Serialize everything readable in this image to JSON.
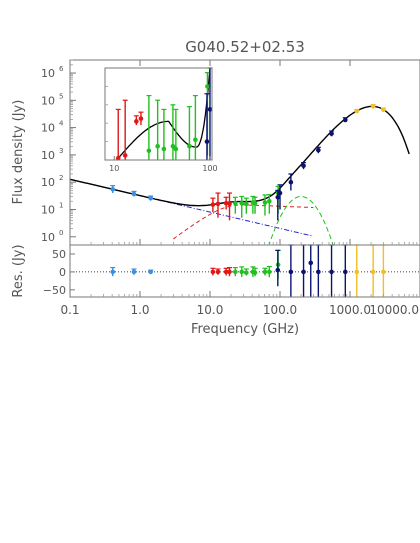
{
  "chart_data": {
    "type": "scatter",
    "title": "G040.52+02.53",
    "colors": {
      "blue": "#3a8fe0",
      "red": "#e01818",
      "green": "#20c020",
      "navy": "#0a1470",
      "gold": "#f0c020",
      "model": "#000000",
      "dust": "#20c020",
      "ff": "#e02020",
      "sync": "#2020d0"
    },
    "main": {
      "ylabel": "Flux density (Jy)",
      "xscale": "log",
      "yscale": "log",
      "xlim": [
        0.1,
        10000
      ],
      "ylim": [
        0.5,
        3000000
      ],
      "yticks": [
        {
          "v": 1,
          "t": "10",
          "e": "0"
        },
        {
          "v": 10,
          "t": "10",
          "e": "1"
        },
        {
          "v": 100,
          "t": "10",
          "e": "2"
        },
        {
          "v": 1000,
          "t": "10",
          "e": "3"
        },
        {
          "v": 10000,
          "t": "10",
          "e": "4"
        },
        {
          "v": 100000,
          "t": "10",
          "e": "5"
        },
        {
          "v": 1000000,
          "t": "10",
          "e": "6"
        }
      ],
      "series": [
        {
          "color": "blue",
          "points": [
            [
              0.408,
              55,
              40,
              75
            ],
            [
              0.82,
              37,
              30,
              46
            ],
            [
              1.42,
              26,
              21,
              31
            ]
          ]
        },
        {
          "color": "red",
          "points": [
            [
              11,
              15,
              8,
              26
            ],
            [
              13,
              16,
              5,
              40
            ],
            [
              17,
              17,
              10,
              28
            ],
            [
              19,
              16,
              4,
              40
            ]
          ]
        },
        {
          "color": "green",
          "points": [
            [
              23,
              17,
              7,
              28
            ],
            [
              28.4,
              17,
              5,
              30
            ],
            [
              33,
              16,
              7,
              26
            ],
            [
              41,
              18,
              7,
              30
            ],
            [
              44,
              17,
              7,
              28
            ],
            [
              61,
              18,
              6,
              34
            ],
            [
              70.4,
              20,
              7,
              35
            ],
            [
              94,
              40,
              7,
              70
            ]
          ]
        },
        {
          "color": "navy",
          "points": [
            [
              93,
              28,
              4,
              50
            ],
            [
              100,
              40,
              10,
              80
            ],
            [
              143,
              100,
              50,
              200
            ],
            [
              217,
              400,
              300,
              520
            ],
            [
              353,
              1500,
              1150,
              1900
            ],
            [
              545,
              6000,
              4800,
              7500
            ],
            [
              857,
              19000,
              16000,
              23000
            ]
          ]
        },
        {
          "color": "gold",
          "points": [
            [
              1250,
              40000,
              35000,
              46000
            ],
            [
              2140,
              60000,
              50000,
              70000
            ],
            [
              3000,
              45000,
              38000,
              52000
            ]
          ]
        }
      ]
    },
    "inset": {
      "xscale": "log",
      "yscale": "linear",
      "xlim": [
        8,
        105
      ],
      "ylim": [
        0,
        100
      ],
      "xticks": [
        {
          "v": 10,
          "t": "10"
        },
        {
          "v": 100,
          "t": "100"
        }
      ],
      "series": [
        {
          "color": "red",
          "points": [
            [
              11,
              2,
              0,
              55
            ],
            [
              13,
              5,
              0,
              65
            ],
            [
              17,
              42,
              38,
              48
            ],
            [
              19,
              45,
              38,
              52
            ]
          ]
        },
        {
          "color": "green",
          "points": [
            [
              23,
              10,
              0,
              70
            ],
            [
              28.4,
              15,
              0,
              65
            ],
            [
              33,
              12,
              0,
              55
            ],
            [
              41,
              15,
              0,
              60
            ],
            [
              44,
              12,
              0,
              55
            ],
            [
              61,
              15,
              0,
              58
            ],
            [
              70.4,
              22,
              0,
              70
            ],
            [
              94,
              80,
              5,
              95
            ]
          ]
        },
        {
          "color": "navy",
          "points": [
            [
              93,
              20,
              0,
              72
            ],
            [
              100,
              55,
              0,
              100
            ]
          ]
        }
      ]
    },
    "residual": {
      "ylabel": "Res. (Jy)",
      "xlabel": "Frequency (GHz)",
      "xscale": "log",
      "xlim": [
        0.1,
        10000
      ],
      "ylim": [
        -70,
        75
      ],
      "yticks": [
        {
          "v": 50,
          "t": "50"
        },
        {
          "v": 0,
          "t": "0"
        },
        {
          "v": -50,
          "t": "−50"
        }
      ],
      "xticks": [
        {
          "v": 0.1,
          "t": "0.1"
        },
        {
          "v": 1,
          "t": "1.0"
        },
        {
          "v": 10,
          "t": "10.0"
        },
        {
          "v": 100,
          "t": "100.0"
        },
        {
          "v": 1000,
          "t": "1000.0"
        },
        {
          "v": 10000,
          "t": "10000.0"
        }
      ],
      "series": [
        {
          "color": "blue",
          "points": [
            [
              0.408,
              0,
              -12,
              12
            ],
            [
              0.82,
              0,
              -8,
              8
            ],
            [
              1.42,
              0,
              -5,
              5
            ]
          ]
        },
        {
          "color": "red",
          "points": [
            [
              11,
              0,
              -10,
              10
            ],
            [
              13,
              0,
              -8,
              8
            ],
            [
              17,
              0,
              -10,
              10
            ],
            [
              19,
              0,
              -12,
              12
            ]
          ]
        },
        {
          "color": "green",
          "points": [
            [
              23,
              0,
              -12,
              12
            ],
            [
              28.4,
              0,
              -14,
              14
            ],
            [
              33,
              -2,
              -10,
              8
            ],
            [
              41,
              0,
              -14,
              14
            ],
            [
              44,
              -2,
              -12,
              10
            ],
            [
              61,
              0,
              -10,
              10
            ],
            [
              70.4,
              0,
              -15,
              15
            ],
            [
              94,
              20,
              -20,
              60
            ]
          ]
        },
        {
          "color": "navy",
          "points": [
            [
              93,
              5,
              -40,
              60
            ],
            [
              143,
              0,
              -70,
              75
            ],
            [
              217,
              0,
              -70,
              75
            ],
            [
              275,
              25,
              -70,
              75
            ],
            [
              353,
              0,
              -70,
              75
            ],
            [
              545,
              0,
              -70,
              75
            ],
            [
              857,
              0,
              -70,
              75
            ]
          ]
        },
        {
          "color": "gold",
          "points": [
            [
              1250,
              0,
              -70,
              75
            ],
            [
              2140,
              0,
              -70,
              75
            ],
            [
              3000,
              0,
              -70,
              75
            ]
          ]
        }
      ]
    }
  }
}
